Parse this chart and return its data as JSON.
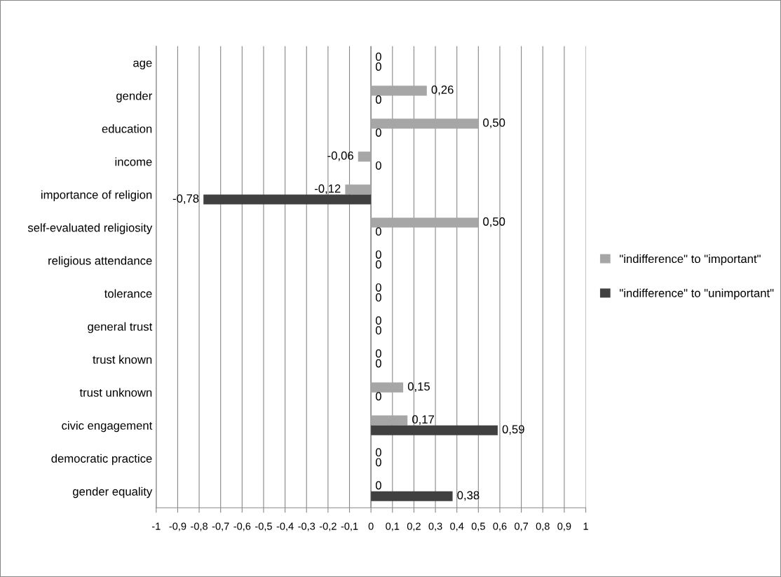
{
  "chart_data": {
    "type": "bar",
    "orientation": "horizontal",
    "categories": [
      "age",
      "gender",
      "education",
      "income",
      "importance of religion",
      "self-evaluated religiosity",
      "religious attendance",
      "tolerance",
      "general trust",
      "trust known",
      "trust unknown",
      "civic engagement",
      "democratic practice",
      "gender equality"
    ],
    "series": [
      {
        "name": "\"indifference\" to \"important\"",
        "color": "#a6a6a6",
        "values": [
          0,
          0.26,
          0.5,
          -0.06,
          -0.12,
          0.5,
          0,
          0,
          0,
          0,
          0.15,
          0.17,
          0,
          0
        ],
        "value_labels": [
          "0",
          "0,26",
          "0,50",
          "-0,06",
          "-0,12",
          "0,50",
          "0",
          "0",
          "0",
          "0",
          "0,15",
          "0,17",
          "0",
          "0"
        ]
      },
      {
        "name": "\"indifference\" to \"unimportant\"",
        "color": "#404040",
        "values": [
          0,
          0,
          0,
          0,
          -0.78,
          0,
          0,
          0,
          0,
          0,
          0,
          0.59,
          0,
          0.38
        ],
        "value_labels": [
          "0",
          "0",
          "0",
          "0",
          "-0,78",
          "0",
          "0",
          "0",
          "0",
          "0",
          "0",
          "0,59",
          "0",
          "0,38"
        ]
      }
    ],
    "xlim": [
      -1,
      1
    ],
    "xticks": [
      {
        "value": -1,
        "label": "-1"
      },
      {
        "value": -0.9,
        "label": "-0,9"
      },
      {
        "value": -0.8,
        "label": "-0,8"
      },
      {
        "value": -0.7,
        "label": "-0,7"
      },
      {
        "value": -0.6,
        "label": "-0,6"
      },
      {
        "value": -0.5,
        "label": "-0,5"
      },
      {
        "value": -0.4,
        "label": "-0,4"
      },
      {
        "value": -0.3,
        "label": "-0,3"
      },
      {
        "value": -0.2,
        "label": "-0,2"
      },
      {
        "value": -0.1,
        "label": "-0,1"
      },
      {
        "value": 0,
        "label": "0"
      },
      {
        "value": 0.1,
        "label": "0,1"
      },
      {
        "value": 0.2,
        "label": "0,2"
      },
      {
        "value": 0.3,
        "label": "0,3"
      },
      {
        "value": 0.4,
        "label": "0,4"
      },
      {
        "value": 0.5,
        "label": "0,5"
      },
      {
        "value": 0.6,
        "label": "0,6"
      },
      {
        "value": 0.7,
        "label": "0,7"
      },
      {
        "value": 0.8,
        "label": "0,8"
      },
      {
        "value": 0.9,
        "label": "0,9"
      },
      {
        "value": 1,
        "label": "1"
      }
    ],
    "grid": "x",
    "legend": "right"
  }
}
